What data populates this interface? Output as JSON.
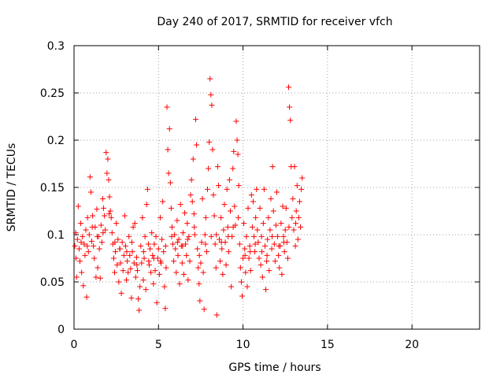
{
  "chart_data": {
    "type": "scatter",
    "title": "Day 240 of 2017, SRMTID for receiver vfch",
    "xlabel": "GPS time / hours",
    "ylabel": "SRMTID / TECUs",
    "xlim": [
      0,
      24
    ],
    "ylim": [
      0,
      0.3
    ],
    "xticks": [
      0,
      5,
      10,
      15,
      20
    ],
    "xtick_labels": [
      "0",
      "5",
      "10",
      "15",
      "20"
    ],
    "yticks": [
      0,
      0.05,
      0.1,
      0.15,
      0.2,
      0.25,
      0.3
    ],
    "ytick_labels": [
      "0",
      "0.05",
      "0.1",
      "0.15",
      "0.2",
      "0.25",
      "0.3"
    ],
    "grid": true,
    "marker": "+",
    "series": [
      {
        "name": "SRMTID",
        "color": "#ff0000",
        "points": [
          [
            0.05,
            0.088
          ],
          [
            0.1,
            0.102
          ],
          [
            0.15,
            0.055
          ],
          [
            0.2,
            0.095
          ],
          [
            0.25,
            0.13
          ],
          [
            0.3,
            0.085
          ],
          [
            0.35,
            0.072
          ],
          [
            0.4,
            0.112
          ],
          [
            0.45,
            0.06
          ],
          [
            0.5,
            0.098
          ],
          [
            0.55,
            0.046
          ],
          [
            0.6,
            0.09
          ],
          [
            0.65,
            0.078
          ],
          [
            0.7,
            0.105
          ],
          [
            0.75,
            0.034
          ],
          [
            0.8,
            0.118
          ],
          [
            0.85,
            0.082
          ],
          [
            0.9,
            0.1
          ],
          [
            0.95,
            0.161
          ],
          [
            1.0,
            0.145
          ],
          [
            1.05,
            0.093
          ],
          [
            1.1,
            0.12
          ],
          [
            1.15,
            0.088
          ],
          [
            1.2,
            0.075
          ],
          [
            1.25,
            0.108
          ],
          [
            1.3,
            0.055
          ],
          [
            1.35,
            0.127
          ],
          [
            1.4,
            0.065
          ],
          [
            1.45,
            0.098
          ],
          [
            1.5,
            0.085
          ],
          [
            1.55,
            0.054
          ],
          [
            1.6,
            0.11
          ],
          [
            1.65,
            0.092
          ],
          [
            1.7,
            0.138
          ],
          [
            1.75,
            0.128
          ],
          [
            1.8,
            0.12
          ],
          [
            1.85,
            0.105
          ],
          [
            1.9,
            0.187
          ],
          [
            1.95,
            0.165
          ],
          [
            2.0,
            0.18
          ],
          [
            2.05,
            0.158
          ],
          [
            2.1,
            0.14
          ],
          [
            2.15,
            0.125
          ],
          [
            2.2,
            0.118
          ],
          [
            2.25,
            0.102
          ],
          [
            2.3,
            0.09
          ],
          [
            2.35,
            0.075
          ],
          [
            2.4,
            0.06
          ],
          [
            2.45,
            0.082
          ],
          [
            2.5,
            0.112
          ],
          [
            2.55,
            0.068
          ],
          [
            2.6,
            0.095
          ],
          [
            2.65,
            0.05
          ],
          [
            2.7,
            0.085
          ],
          [
            2.75,
            0.07
          ],
          [
            2.8,
            0.038
          ],
          [
            2.85,
            0.092
          ],
          [
            2.9,
            0.062
          ],
          [
            2.95,
            0.078
          ],
          [
            3.0,
            0.12
          ],
          [
            3.05,
            0.088
          ],
          [
            3.1,
            0.052
          ],
          [
            3.15,
            0.072
          ],
          [
            3.2,
            0.06
          ],
          [
            3.25,
            0.098
          ],
          [
            3.3,
            0.078
          ],
          [
            3.35,
            0.064
          ],
          [
            3.4,
            0.033
          ],
          [
            3.45,
            0.082
          ],
          [
            3.5,
            0.108
          ],
          [
            3.55,
            0.07
          ],
          [
            3.6,
            0.112
          ],
          [
            3.65,
            0.055
          ],
          [
            3.7,
            0.076
          ],
          [
            3.75,
            0.062
          ],
          [
            3.8,
            0.032
          ],
          [
            3.85,
            0.02
          ],
          [
            3.9,
            0.045
          ],
          [
            3.95,
            0.088
          ],
          [
            4.0,
            0.07
          ],
          [
            4.05,
            0.118
          ],
          [
            4.1,
            0.052
          ],
          [
            4.15,
            0.075
          ],
          [
            4.2,
            0.098
          ],
          [
            4.25,
            0.042
          ],
          [
            4.3,
            0.132
          ],
          [
            4.35,
            0.148
          ],
          [
            4.4,
            0.09
          ],
          [
            4.45,
            0.068
          ],
          [
            4.5,
            0.085
          ],
          [
            4.55,
            0.06
          ],
          [
            4.6,
            0.102
          ],
          [
            4.65,
            0.078
          ],
          [
            4.7,
            0.048
          ],
          [
            4.75,
            0.09
          ],
          [
            4.8,
            0.062
          ],
          [
            4.85,
            0.098
          ],
          [
            4.9,
            0.028
          ],
          [
            4.95,
            0.075
          ],
          [
            5.0,
            0.085
          ],
          [
            5.05,
            0.058
          ],
          [
            5.1,
            0.118
          ],
          [
            5.15,
            0.07
          ],
          [
            5.2,
            0.095
          ],
          [
            5.25,
            0.135
          ],
          [
            5.3,
            0.082
          ],
          [
            5.35,
            0.045
          ],
          [
            5.4,
            0.022
          ],
          [
            5.45,
            0.065
          ],
          [
            5.5,
            0.235
          ],
          [
            5.55,
            0.19
          ],
          [
            5.6,
            0.165
          ],
          [
            5.65,
            0.212
          ],
          [
            5.7,
            0.155
          ],
          [
            5.75,
            0.128
          ],
          [
            5.8,
            0.108
          ],
          [
            5.85,
            0.09
          ],
          [
            5.9,
            0.072
          ],
          [
            5.95,
            0.1
          ],
          [
            6.0,
            0.085
          ],
          [
            6.05,
            0.06
          ],
          [
            6.1,
            0.115
          ],
          [
            6.15,
            0.078
          ],
          [
            6.2,
            0.095
          ],
          [
            6.25,
            0.048
          ],
          [
            6.3,
            0.132
          ],
          [
            6.35,
            0.088
          ],
          [
            6.4,
            0.07
          ],
          [
            6.45,
            0.102
          ],
          [
            6.5,
            0.058
          ],
          [
            6.55,
            0.123
          ],
          [
            6.6,
            0.09
          ],
          [
            6.65,
            0.078
          ],
          [
            6.7,
            0.112
          ],
          [
            6.75,
            0.052
          ],
          [
            6.8,
            0.098
          ],
          [
            6.85,
            0.072
          ],
          [
            6.9,
            0.142
          ],
          [
            6.95,
            0.158
          ],
          [
            7.0,
            0.135
          ],
          [
            7.05,
            0.18
          ],
          [
            7.1,
            0.122
          ],
          [
            7.15,
            0.1
          ],
          [
            7.2,
            0.222
          ],
          [
            7.25,
            0.195
          ],
          [
            7.3,
            0.085
          ],
          [
            7.35,
            0.065
          ],
          [
            7.4,
            0.048
          ],
          [
            7.45,
            0.03
          ],
          [
            7.5,
            0.07
          ],
          [
            7.55,
            0.092
          ],
          [
            7.6,
            0.138
          ],
          [
            7.65,
            0.06
          ],
          [
            7.7,
            0.021
          ],
          [
            7.75,
            0.1
          ],
          [
            7.8,
            0.118
          ],
          [
            7.85,
            0.082
          ],
          [
            7.9,
            0.148
          ],
          [
            7.95,
            0.17
          ],
          [
            8.0,
            0.198
          ],
          [
            8.05,
            0.265
          ],
          [
            8.1,
            0.248
          ],
          [
            8.15,
            0.237
          ],
          [
            8.2,
            0.19
          ],
          [
            8.25,
            0.142
          ],
          [
            8.3,
            0.12
          ],
          [
            8.35,
            0.09
          ],
          [
            8.4,
            0.065
          ],
          [
            8.45,
            0.015
          ],
          [
            8.5,
            0.172
          ],
          [
            8.55,
            0.152
          ],
          [
            8.6,
            0.095
          ],
          [
            8.65,
            0.072
          ],
          [
            8.7,
            0.118
          ],
          [
            8.75,
            0.085
          ],
          [
            8.8,
            0.058
          ],
          [
            8.85,
            0.105
          ],
          [
            8.9,
            0.132
          ],
          [
            8.95,
            0.092
          ],
          [
            9.0,
            0.068
          ],
          [
            9.05,
            0.148
          ],
          [
            9.1,
            0.108
          ],
          [
            9.15,
            0.082
          ],
          [
            9.2,
            0.158
          ],
          [
            9.25,
            0.125
          ],
          [
            9.3,
            0.045
          ],
          [
            9.35,
            0.098
          ],
          [
            9.4,
            0.17
          ],
          [
            9.45,
            0.188
          ],
          [
            9.5,
            0.13
          ],
          [
            9.55,
            0.11
          ],
          [
            9.6,
            0.22
          ],
          [
            9.65,
            0.2
          ],
          [
            9.7,
            0.185
          ],
          [
            9.75,
            0.152
          ],
          [
            9.8,
            0.09
          ],
          [
            9.85,
            0.065
          ],
          [
            9.9,
            0.05
          ],
          [
            9.95,
            0.035
          ],
          [
            10.0,
            0.075
          ],
          [
            10.05,
            0.112
          ],
          [
            10.1,
            0.085
          ],
          [
            10.15,
            0.06
          ],
          [
            10.2,
            0.098
          ],
          [
            10.25,
            0.045
          ],
          [
            10.3,
            0.128
          ],
          [
            10.35,
            0.075
          ],
          [
            10.4,
            0.088
          ],
          [
            10.45,
            0.062
          ],
          [
            10.5,
            0.142
          ],
          [
            10.55,
            0.108
          ],
          [
            10.6,
            0.135
          ],
          [
            10.65,
            0.098
          ],
          [
            10.7,
            0.082
          ],
          [
            10.75,
            0.118
          ],
          [
            10.8,
            0.148
          ],
          [
            10.85,
            0.105
          ],
          [
            10.9,
            0.092
          ],
          [
            10.95,
            0.075
          ],
          [
            11.0,
            0.128
          ],
          [
            11.05,
            0.068
          ],
          [
            11.1,
            0.098
          ],
          [
            11.15,
            0.055
          ],
          [
            11.2,
            0.112
          ],
          [
            11.25,
            0.148
          ],
          [
            11.3,
            0.088
          ],
          [
            11.35,
            0.042
          ],
          [
            11.4,
            0.072
          ],
          [
            11.45,
            0.095
          ],
          [
            11.5,
            0.118
          ],
          [
            11.55,
            0.062
          ],
          [
            11.6,
            0.105
          ],
          [
            11.65,
            0.138
          ],
          [
            11.7,
            0.085
          ],
          [
            11.75,
            0.172
          ],
          [
            11.8,
            0.125
          ],
          [
            11.85,
            0.09
          ],
          [
            11.9,
            0.072
          ],
          [
            11.95,
            0.11
          ],
          [
            12.0,
            0.145
          ],
          [
            12.05,
            0.098
          ],
          [
            12.1,
            0.078
          ],
          [
            12.15,
            0.065
          ],
          [
            12.2,
            0.088
          ],
          [
            12.25,
            0.112
          ],
          [
            12.3,
            0.058
          ],
          [
            12.35,
            0.13
          ],
          [
            12.4,
            0.098
          ],
          [
            12.45,
            0.082
          ],
          [
            12.5,
            0.105
          ],
          [
            12.55,
            0.128
          ],
          [
            12.6,
            0.092
          ],
          [
            12.65,
            0.075
          ],
          [
            12.7,
            0.256
          ],
          [
            12.75,
            0.235
          ],
          [
            12.8,
            0.221
          ],
          [
            12.85,
            0.172
          ],
          [
            12.9,
            0.118
          ],
          [
            12.95,
            0.138
          ],
          [
            13.0,
            0.105
          ],
          [
            13.05,
            0.172
          ],
          [
            13.1,
            0.088
          ],
          [
            13.15,
            0.125
          ],
          [
            13.2,
            0.152
          ],
          [
            13.25,
            0.095
          ],
          [
            13.3,
            0.118
          ],
          [
            13.35,
            0.135
          ],
          [
            13.4,
            0.108
          ],
          [
            13.45,
            0.148
          ],
          [
            13.5,
            0.16
          ],
          [
            0.12,
            0.075
          ],
          [
            0.42,
            0.092
          ],
          [
            0.78,
            0.088
          ],
          [
            1.08,
            0.108
          ],
          [
            1.38,
            0.098
          ],
          [
            1.72,
            0.102
          ],
          [
            2.08,
            0.122
          ],
          [
            2.42,
            0.092
          ],
          [
            2.72,
            0.085
          ],
          [
            3.12,
            0.082
          ],
          [
            3.42,
            0.092
          ],
          [
            3.72,
            0.068
          ],
          [
            4.12,
            0.082
          ],
          [
            4.42,
            0.072
          ],
          [
            4.72,
            0.075
          ],
          [
            5.12,
            0.072
          ],
          [
            5.42,
            0.088
          ],
          [
            5.78,
            0.098
          ],
          [
            6.12,
            0.092
          ],
          [
            6.42,
            0.088
          ],
          [
            6.72,
            0.095
          ],
          [
            7.12,
            0.108
          ],
          [
            7.42,
            0.078
          ],
          [
            7.78,
            0.09
          ],
          [
            8.12,
            0.098
          ],
          [
            8.42,
            0.1
          ],
          [
            8.72,
            0.092
          ],
          [
            9.12,
            0.098
          ],
          [
            9.42,
            0.108
          ],
          [
            9.72,
            0.118
          ],
          [
            10.12,
            0.078
          ],
          [
            10.42,
            0.082
          ],
          [
            10.72,
            0.09
          ],
          [
            11.12,
            0.082
          ],
          [
            11.42,
            0.078
          ],
          [
            11.72,
            0.098
          ],
          [
            12.12,
            0.088
          ],
          [
            12.42,
            0.092
          ],
          [
            12.72,
            0.108
          ],
          [
            13.12,
            0.112
          ]
        ]
      }
    ]
  }
}
